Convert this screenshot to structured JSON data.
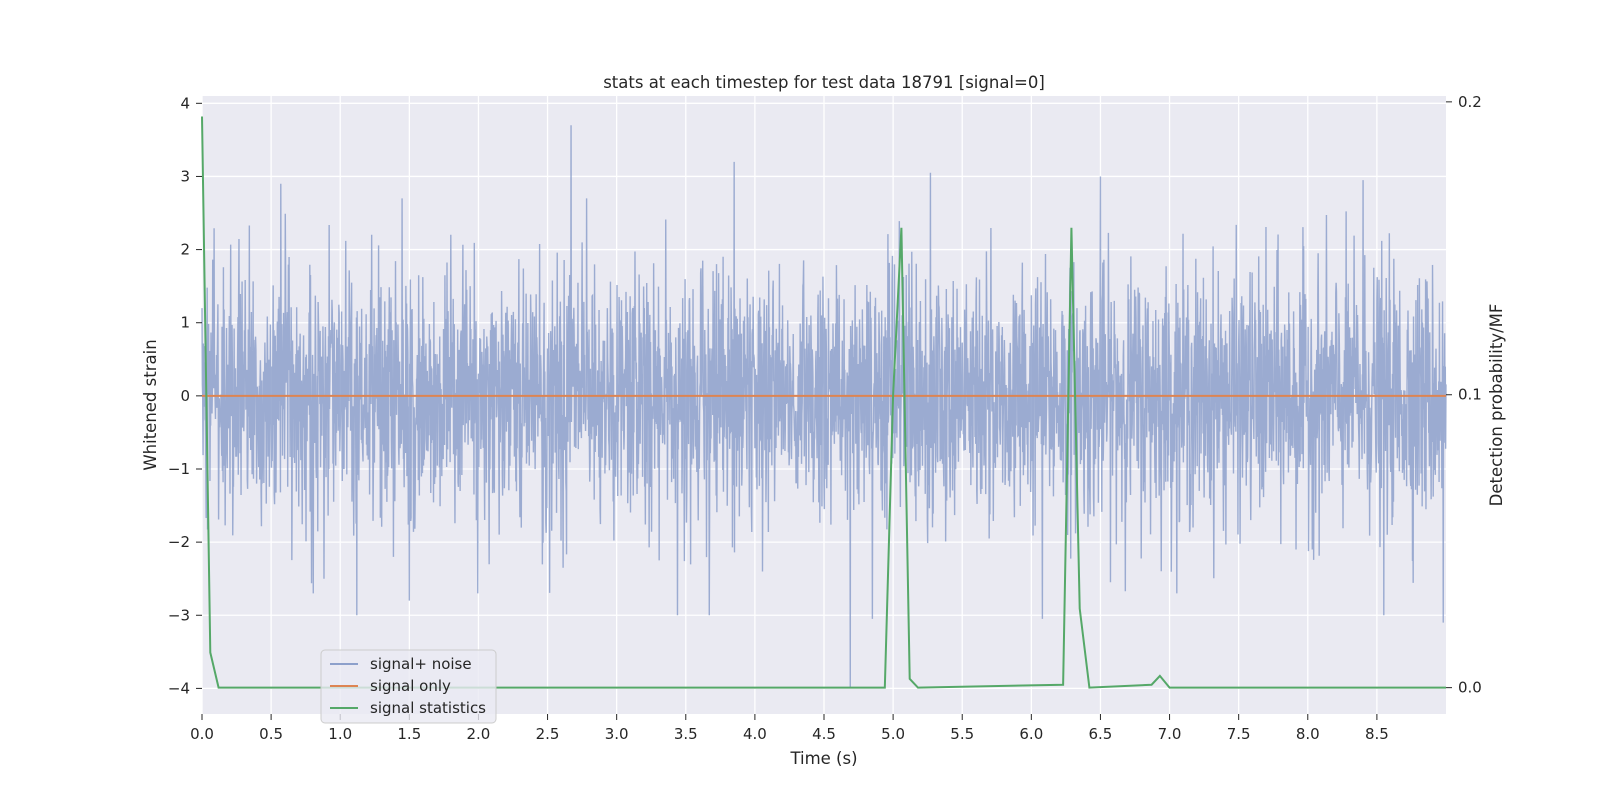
{
  "chart_data": {
    "type": "line",
    "title": "stats at each timestep for test data 18791 [signal=0]",
    "xlabel": "Time (s)",
    "ylabel": "Whitened strain",
    "y2label": "Detection probability/MF",
    "xlim": [
      0.0,
      9.0
    ],
    "ylim": [
      -4.35,
      4.1
    ],
    "y2lim": [
      -0.009,
      0.202
    ],
    "xticks": [
      "0.0",
      "0.5",
      "1.0",
      "1.5",
      "2.0",
      "2.5",
      "3.0",
      "3.5",
      "4.0",
      "4.5",
      "5.0",
      "5.5",
      "6.0",
      "6.5",
      "7.0",
      "7.5",
      "8.0",
      "8.5"
    ],
    "yticks": [
      "4",
      "3",
      "2",
      "1",
      "0",
      "−1",
      "−2",
      "−3",
      "−4"
    ],
    "y2ticks": [
      "0.2",
      "0.1",
      "0.0"
    ],
    "grid": true,
    "legend_position": "lower-left",
    "series": [
      {
        "name": "signal+ noise",
        "color": "#8da0cb",
        "axis": "left",
        "kind": "noise",
        "noise_sd": 0.85,
        "noise_range": [
          -4.0,
          3.7
        ],
        "peaks": [
          [
            2.67,
            3.7
          ],
          [
            3.85,
            3.2
          ],
          [
            5.27,
            3.05
          ],
          [
            6.5,
            3.0
          ],
          [
            8.4,
            2.95
          ],
          [
            0.57,
            2.9
          ],
          [
            4.69,
            -4.0
          ],
          [
            4.85,
            -3.05
          ],
          [
            3.44,
            -3.0
          ],
          [
            1.12,
            -3.0
          ],
          [
            8.55,
            -3.0
          ],
          [
            6.08,
            -3.05
          ],
          [
            8.98,
            -3.1
          ],
          [
            3.67,
            -3.0
          ],
          [
            1.5,
            -2.8
          ]
        ]
      },
      {
        "name": "signal only",
        "color": "#dd8452",
        "axis": "left",
        "x": [
          0.0,
          9.0
        ],
        "values": [
          0.0,
          0.0
        ]
      },
      {
        "name": "signal statistics",
        "color": "#55a868",
        "axis": "right",
        "x": [
          0.0,
          0.06,
          0.12,
          4.94,
          5.0,
          5.06,
          5.12,
          5.18,
          6.23,
          6.29,
          6.35,
          6.42,
          6.87,
          6.93,
          7.0,
          9.0
        ],
        "values": [
          0.195,
          0.012,
          0.0,
          0.0,
          0.1,
          0.157,
          0.003,
          0.0,
          0.001,
          0.157,
          0.027,
          0.0,
          0.001,
          0.004,
          0.0,
          0.0
        ]
      }
    ]
  }
}
